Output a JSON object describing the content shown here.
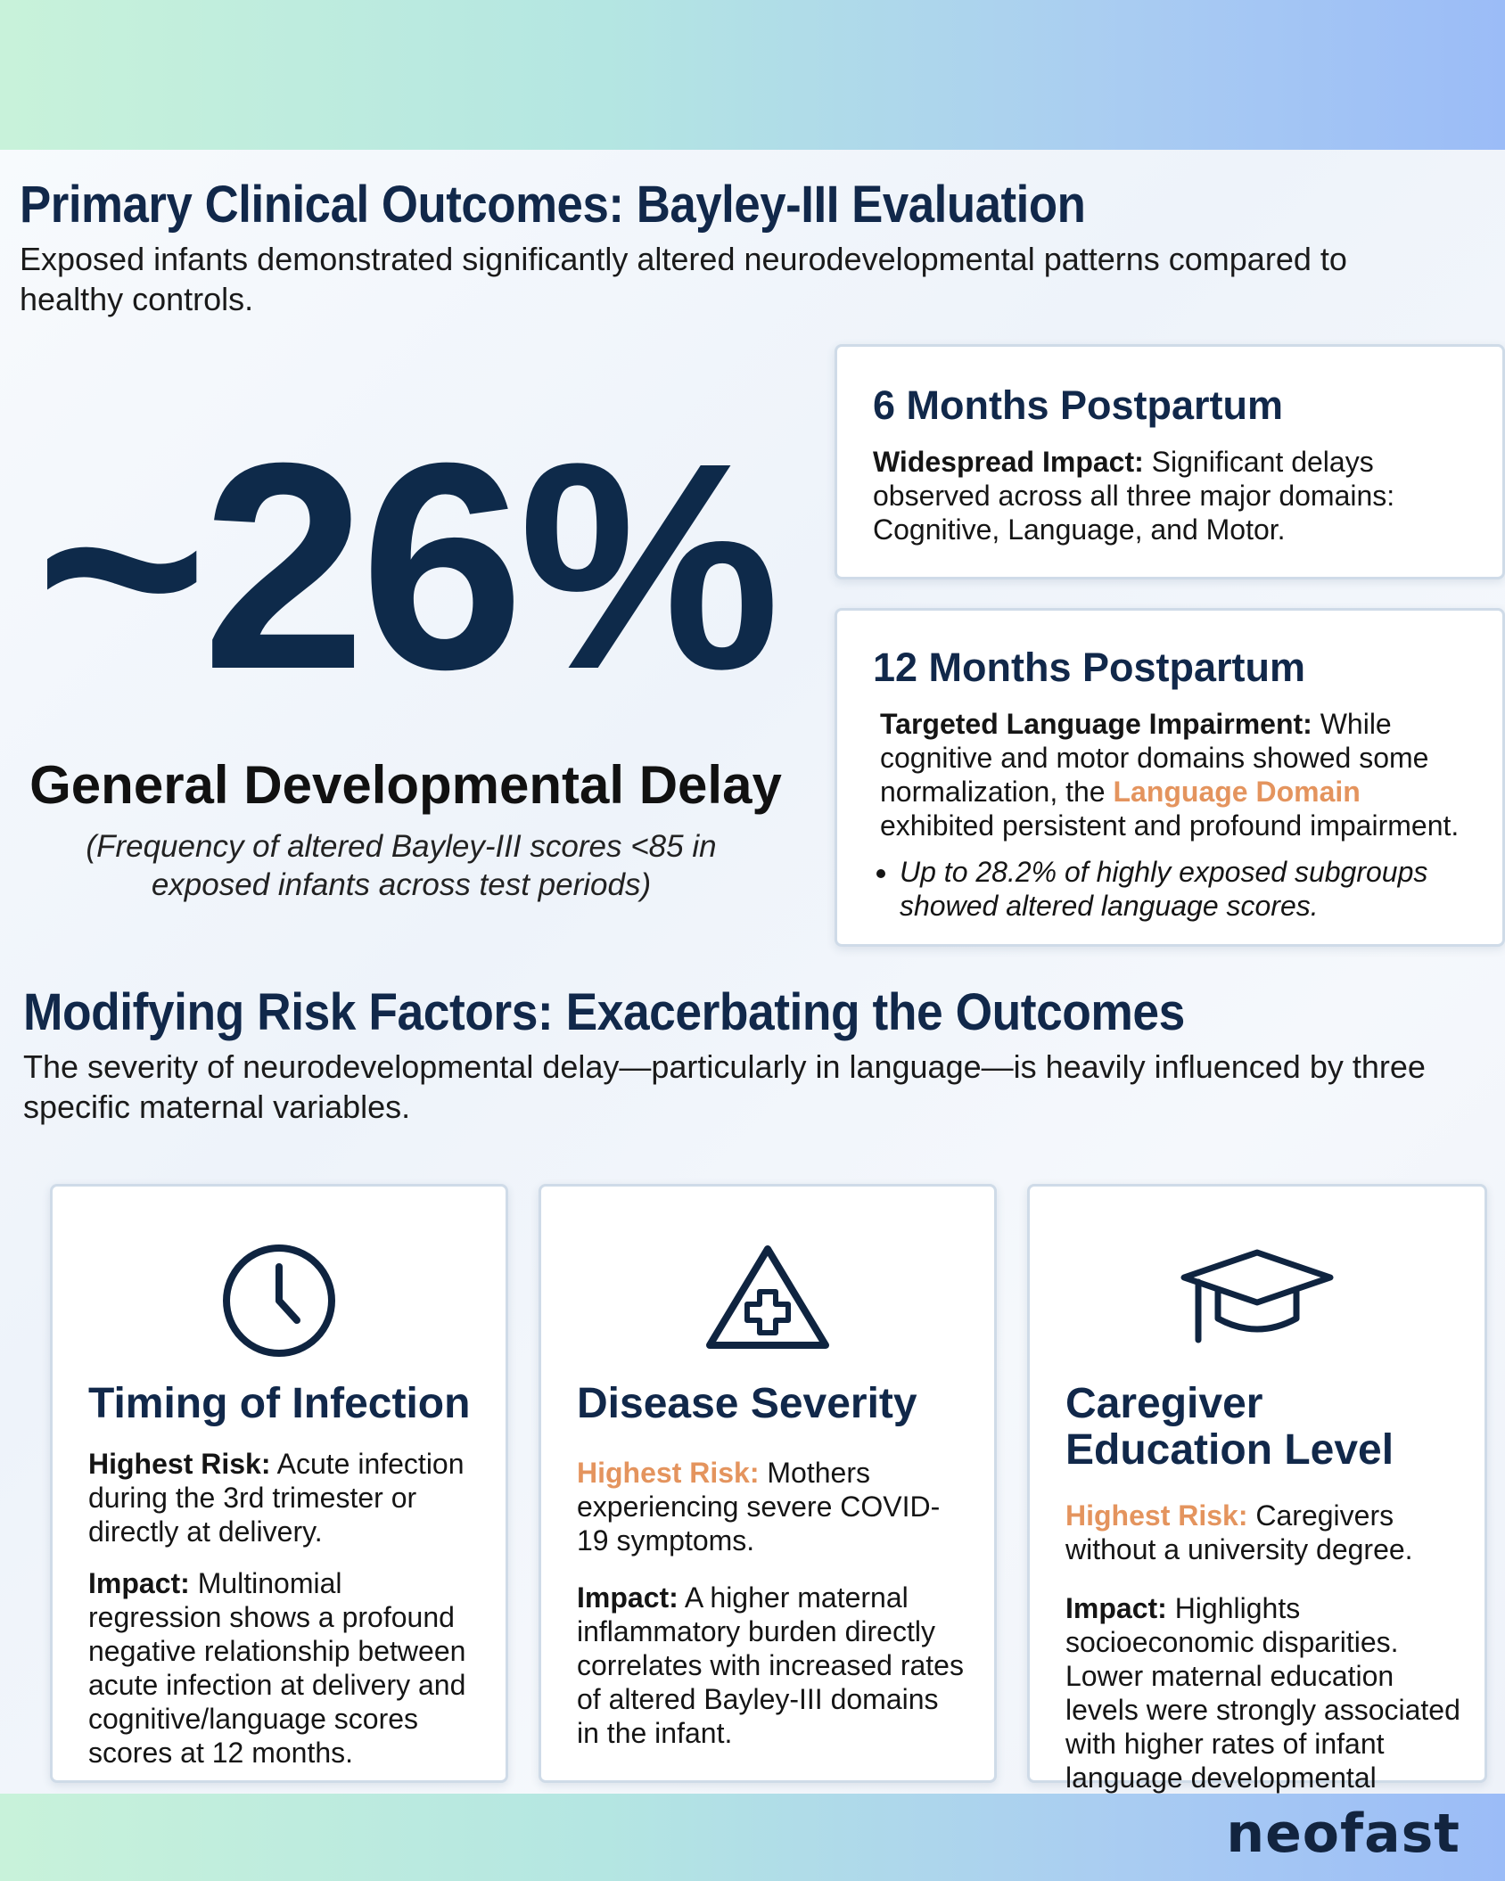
{
  "primary": {
    "title": "Primary Clinical Outcomes: Bayley-III Evaluation",
    "subtitle": "Exposed infants demonstrated significantly altered neurodevelopmental patterns compared to healthy controls."
  },
  "stat": {
    "value": "~26%",
    "label": "General Developmental Delay",
    "note": "(Frequency of altered Bayley-III scores <85 in exposed infants across test periods)"
  },
  "six_months": {
    "title": "6 Months Postpartum",
    "lead": "Widespread Impact:",
    "text": " Significant delays observed across all three major domains: Cognitive, Language, and Motor."
  },
  "twelve_months": {
    "title": "12 Months Postpartum",
    "lead": "Targeted Language Impairment:",
    "text_before": " While cognitive and motor domains showed some normalization, the ",
    "highlight": "Language Domain",
    "text_after": " exhibited persistent and profound impairment.",
    "bullet": "Up to 28.2% of highly exposed subgroups showed altered language scores."
  },
  "modifying": {
    "title": "Modifying Risk Factors: Exacerbating the Outcomes",
    "subtitle": "The severity of neurodevelopmental delay—particularly in language—is heavily influenced by three specific maternal variables."
  },
  "factors": [
    {
      "icon": "clock-icon",
      "title": "Timing of Infection",
      "risk_label": "Highest Risk:",
      "risk_text": " Acute infection during the 3rd trimester or directly at delivery.",
      "impact_label": "Impact:",
      "impact_text": " Multinomial regression shows a profound negative relationship between acute infection  at delivery and cognitive/language scores scores at 12 months."
    },
    {
      "icon": "medical-warning-icon",
      "title": "Disease Severity",
      "risk_label": "Highest Risk:",
      "risk_text": " Mothers experiencing severe COVID-19 symptoms.",
      "impact_label": "Impact:",
      "impact_text": " A higher maternal inflammatory burden directly correlates with increased rates of altered Bayley-III domains in the infant."
    },
    {
      "icon": "graduation-cap-icon",
      "title": "Caregiver Education Level",
      "risk_label": "Highest Risk:",
      "risk_text": " Caregivers without a university degree.",
      "impact_label": "Impact:",
      "impact_text": " Highlights socioeconomic disparities. Lower maternal education levels were strongly associated with higher rates of infant language developmental delays."
    }
  ],
  "brand": {
    "logo_text": "neofast"
  },
  "colors": {
    "navy": "#11284a",
    "highlight": "#e4945e",
    "card_border": "#cfdbe8"
  }
}
